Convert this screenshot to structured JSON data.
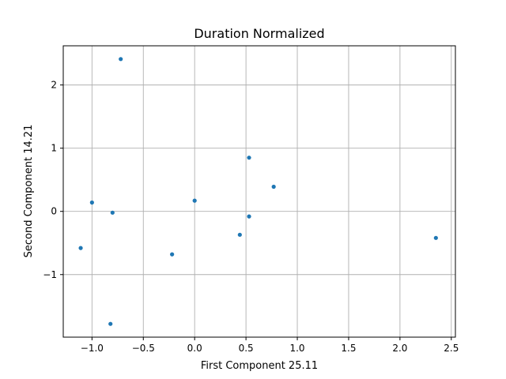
{
  "chart_data": {
    "type": "scatter",
    "title": "Duration Normalized",
    "xlabel": "First Component 25.11",
    "ylabel": "Second Component 14.21",
    "xlim": [
      -1.28,
      2.54
    ],
    "ylim": [
      -1.99,
      2.62
    ],
    "xticks": [
      -1.0,
      -0.5,
      0.0,
      0.5,
      1.0,
      1.5,
      2.0,
      2.5
    ],
    "xtick_labels": [
      "−1.0",
      "−0.5",
      "0.0",
      "0.5",
      "1.0",
      "1.5",
      "2.0",
      "2.5"
    ],
    "yticks": [
      -1,
      0,
      1,
      2
    ],
    "ytick_labels": [
      "−1",
      "0",
      "1",
      "2"
    ],
    "grid": true,
    "point_color": "#1f77b4",
    "points": [
      {
        "x": -0.72,
        "y": 2.41
      },
      {
        "x": 0.53,
        "y": 0.85
      },
      {
        "x": 0.77,
        "y": 0.39
      },
      {
        "x": -1.0,
        "y": 0.14
      },
      {
        "x": -0.8,
        "y": -0.02
      },
      {
        "x": 0.0,
        "y": 0.17
      },
      {
        "x": 0.53,
        "y": -0.08
      },
      {
        "x": 0.44,
        "y": -0.37
      },
      {
        "x": 2.35,
        "y": -0.42
      },
      {
        "x": -1.11,
        "y": -0.58
      },
      {
        "x": -0.22,
        "y": -0.68
      },
      {
        "x": -0.82,
        "y": -1.78
      }
    ]
  }
}
